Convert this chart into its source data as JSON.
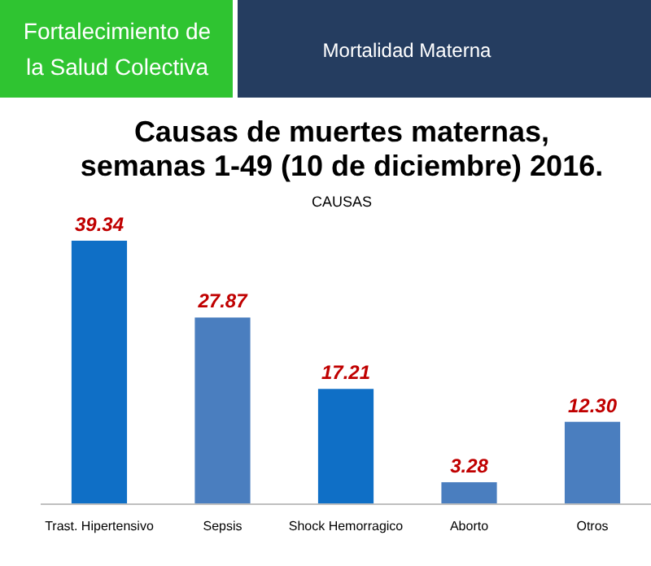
{
  "chart_data": {
    "type": "bar",
    "title": "Causas de muertes maternas,\nsemanas 1-49 (10 de diciembre) 2016.",
    "subtitle": "CAUSAS",
    "annotations": [
      "Fortalecimiento de la Salud Colectiva",
      "Mortalidad Materna"
    ],
    "categories": [
      "Trast. Hipertensivo",
      "Sepsis",
      "Shock Hemorragico",
      "Aborto",
      "Otros"
    ],
    "values": [
      39.34,
      27.87,
      17.21,
      3.28,
      12.3
    ],
    "value_labels": [
      "39.34",
      "27.87",
      "17.21",
      "3.28",
      "12.30"
    ],
    "colors": [
      "#0f6fc6",
      "#4a7ebf",
      "#0f6fc6",
      "#4a7ebf",
      "#4a7ebf"
    ]
  }
}
